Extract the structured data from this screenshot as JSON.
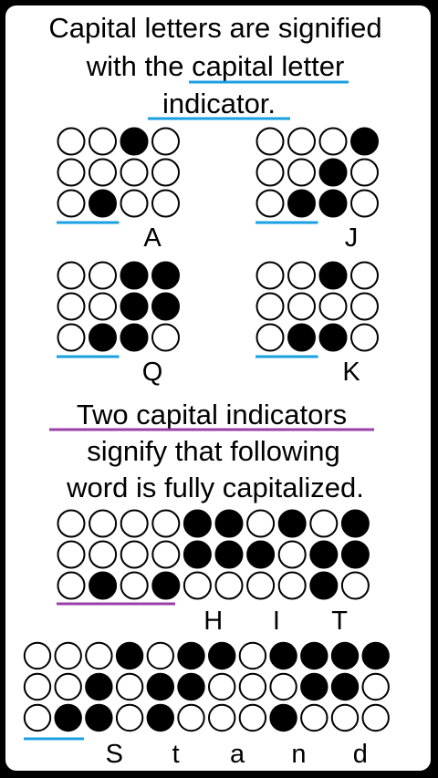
{
  "heading1": {
    "lines": [
      "Capital letters are signified",
      "with the ",
      "indicator."
    ],
    "highlight": "capital letter",
    "underline_color": "#1aa0e0"
  },
  "heading2": {
    "lines": [
      "Two capital indicators",
      "signify that following",
      "word is fully capitalized."
    ],
    "underline_color": "#9a3faa"
  },
  "colors": {
    "dot_filled": "#000000",
    "dot_empty": "#ffffff",
    "dot_stroke": "#000000"
  },
  "examples": [
    {
      "label": "A",
      "underline": "blue",
      "cells": [
        [
          0,
          0,
          0,
          0,
          0,
          1
        ],
        [
          1,
          0,
          0,
          0,
          0,
          0
        ]
      ]
    },
    {
      "label": "J",
      "underline": "blue",
      "cells": [
        [
          0,
          0,
          0,
          0,
          0,
          1
        ],
        [
          0,
          1,
          1,
          1,
          0,
          0
        ]
      ]
    },
    {
      "label": "Q",
      "underline": "blue",
      "cells": [
        [
          0,
          0,
          0,
          0,
          0,
          1
        ],
        [
          1,
          1,
          1,
          1,
          1,
          0
        ]
      ]
    },
    {
      "label": "K",
      "underline": "blue",
      "cells": [
        [
          0,
          0,
          0,
          0,
          0,
          1
        ],
        [
          1,
          0,
          1,
          0,
          0,
          0
        ]
      ]
    }
  ],
  "words": [
    {
      "letters": [
        "H",
        "I",
        "T"
      ],
      "underline": "purple",
      "cells": [
        [
          0,
          0,
          0,
          0,
          0,
          1
        ],
        [
          0,
          0,
          0,
          0,
          0,
          1
        ],
        [
          1,
          1,
          0,
          1,
          1,
          0
        ],
        [
          0,
          1,
          0,
          1,
          0,
          0
        ],
        [
          0,
          1,
          1,
          1,
          1,
          0
        ]
      ]
    },
    {
      "letters": [
        "S",
        "t",
        "a",
        "n",
        "d"
      ],
      "underline": "blue",
      "cells": [
        [
          0,
          0,
          0,
          0,
          0,
          1
        ],
        [
          0,
          1,
          1,
          1,
          0,
          0
        ],
        [
          0,
          1,
          1,
          1,
          1,
          0
        ],
        [
          1,
          0,
          0,
          0,
          0,
          0
        ],
        [
          1,
          0,
          1,
          1,
          1,
          0
        ],
        [
          1,
          1,
          0,
          1,
          0,
          0
        ]
      ]
    }
  ]
}
